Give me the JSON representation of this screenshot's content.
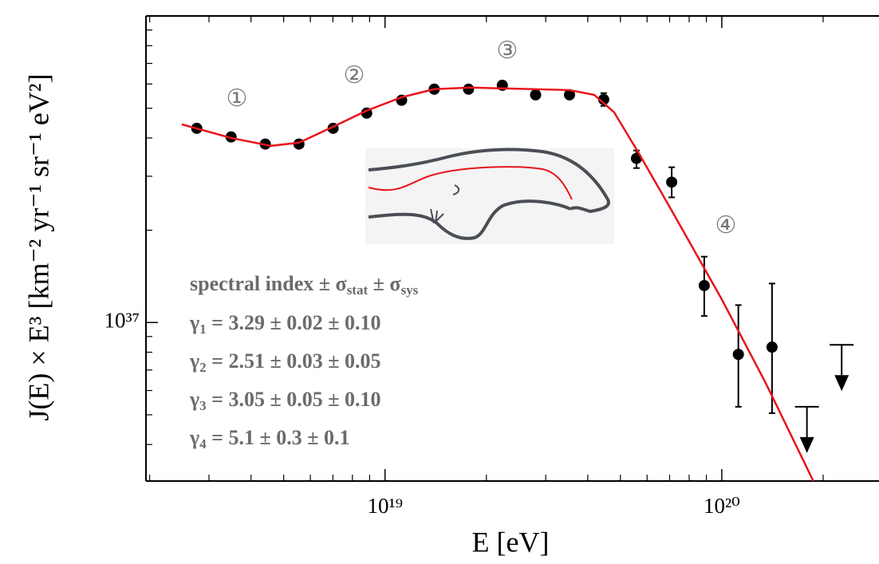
{
  "chart_data": {
    "type": "scatter",
    "x_label": "E [eV]",
    "y_label": "J(E) × E³ [km⁻² yr⁻¹ sr⁻¹ eV²]",
    "log_x": true,
    "log_y": true,
    "xlim": [
      1.95e+18,
      2.93e+20
    ],
    "ylim": [
      3.04e+36,
      1e+38
    ],
    "xticks": [
      {
        "value": 1e+19,
        "label": "10¹⁹"
      },
      {
        "value": 1e+20,
        "label": "10²⁰"
      }
    ],
    "xminor": [
      2e+18,
      3e+18,
      4e+18,
      5e+18,
      6e+18,
      7e+18,
      8e+18,
      9e+18,
      2e+19,
      3e+19,
      4e+19,
      5e+19,
      6e+19,
      7e+19,
      8e+19,
      9e+19,
      2e+20
    ],
    "yticks": [
      {
        "value": 1e+37,
        "label": "10³⁷"
      }
    ],
    "yminor": [
      4e+36,
      5e+36,
      6e+36,
      7e+36,
      8e+36,
      9e+36,
      2e+37,
      3e+37,
      4e+37,
      5e+37,
      6e+37,
      7e+37,
      8e+37,
      9e+37
    ],
    "series": [
      {
        "color": "#000000",
        "x": [
          2.76e+18,
          3.49e+18,
          4.41e+18,
          5.55e+18,
          7.01e+18,
          8.82e+18,
          1.12e+19,
          1.4e+19,
          1.77e+19,
          2.23e+19,
          2.8e+19,
          3.53e+19,
          4.46e+19,
          5.58e+19,
          7.1e+19,
          8.87e+19,
          1.12e+20,
          1.41e+20
        ],
        "values": [
          4.3e+37,
          4.03e+37,
          3.82e+37,
          3.82e+37,
          4.3e+37,
          4.82e+37,
          5.31e+37,
          5.77e+37,
          5.77e+37,
          5.94e+37,
          5.53e+37,
          5.53e+37,
          5.34e+37,
          3.43e+37,
          2.87e+37,
          1.32e+37,
          7.87e+36,
          8.31e+36
        ],
        "lower": [
          null,
          null,
          null,
          null,
          null,
          null,
          null,
          null,
          null,
          null,
          null,
          null,
          5.09e+37,
          3.19e+37,
          2.56e+37,
          1.05e+37,
          5.31e+36,
          5.06e+36
        ],
        "upper": [
          null,
          null,
          null,
          null,
          null,
          null,
          null,
          null,
          null,
          null,
          null,
          null,
          5.6e+37,
          3.64e+37,
          3.21e+37,
          1.64e+37,
          1.14e+37,
          1.34e+37
        ]
      },
      {
        "type": "upper_limit",
        "color": "#000000",
        "x": [
          1.79e+20,
          2.27e+20
        ],
        "values": [
          5.31e+36,
          8.46e+36
        ]
      },
      {
        "type": "line",
        "color": "#e8141b",
        "x": [
          2.49e+18,
          3.49e+18,
          4.58e+18,
          5.55e+18,
          7.01e+18,
          8.82e+18,
          1.12e+19,
          1.4e+19,
          1.79e+19,
          3.53e+19,
          4.18e+19,
          4.79e+19,
          5.64e+19,
          7.02e+19,
          1e+20,
          1.35e+20,
          1.87e+20
        ],
        "values": [
          4.43e+37,
          4e+37,
          3.77e+37,
          3.86e+37,
          4.35e+37,
          4.91e+37,
          5.43e+37,
          5.77e+37,
          5.84e+37,
          5.73e+37,
          5.53e+37,
          4.85e+37,
          3.6e+37,
          2.37e+37,
          1.19e+37,
          6.35e+36,
          3.04e+36
        ]
      }
    ],
    "annotations": [
      "①",
      "②",
      "③",
      "④"
    ],
    "index_lines": [
      [
        {
          "text": "spectral index ± σ"
        },
        {
          "sub": "stat"
        },
        {
          "text": " ± σ"
        },
        {
          "sub": "sys"
        }
      ],
      [
        {
          "text": "γ"
        },
        {
          "sub": "1"
        },
        {
          "text": " = 3.29 ± 0.02 ± 0.10"
        }
      ],
      [
        {
          "text": "γ"
        },
        {
          "sub": "2"
        },
        {
          "text": " = 2.51 ± 0.03 ± 0.05"
        }
      ],
      [
        {
          "text": "γ"
        },
        {
          "sub": "3"
        },
        {
          "text": " = 3.05 ± 0.05 ± 0.10"
        }
      ],
      [
        {
          "text": "γ"
        },
        {
          "sub": "4"
        },
        {
          "text": " = 5.1 ± 0.3 ± 0.1"
        }
      ]
    ]
  }
}
